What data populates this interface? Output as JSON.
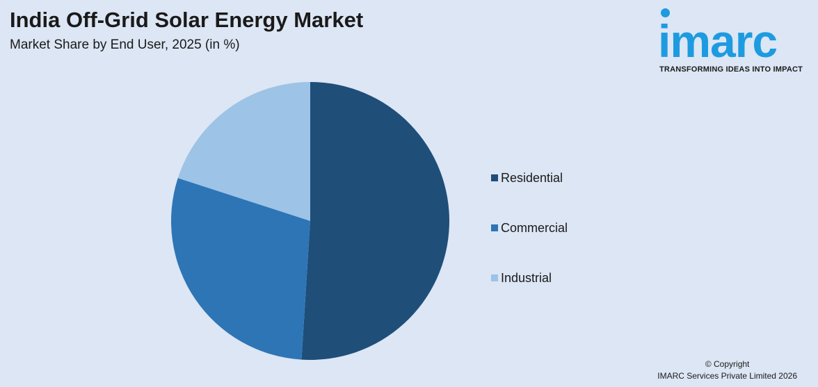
{
  "header": {
    "title": "India Off-Grid Solar Energy Market",
    "subtitle": "Market Share by End User, 2025 (in %)"
  },
  "logo": {
    "word": "imarc",
    "tagline": "TRANSFORMING IDEAS INTO IMPACT",
    "color": "#1e9be0"
  },
  "chart_data": {
    "type": "pie",
    "title": "India Off-Grid Solar Energy Market",
    "subtitle": "Market Share by End User, 2025 (in %)",
    "categories": [
      "Residential",
      "Commercial",
      "Industrial"
    ],
    "values": [
      51,
      29,
      20
    ],
    "colors": [
      "#1f4e79",
      "#2e75b6",
      "#9dc3e6"
    ],
    "legend": "right"
  },
  "footer": {
    "line1": "© Copyright",
    "line2": "IMARC Services Private Limited 2026"
  }
}
